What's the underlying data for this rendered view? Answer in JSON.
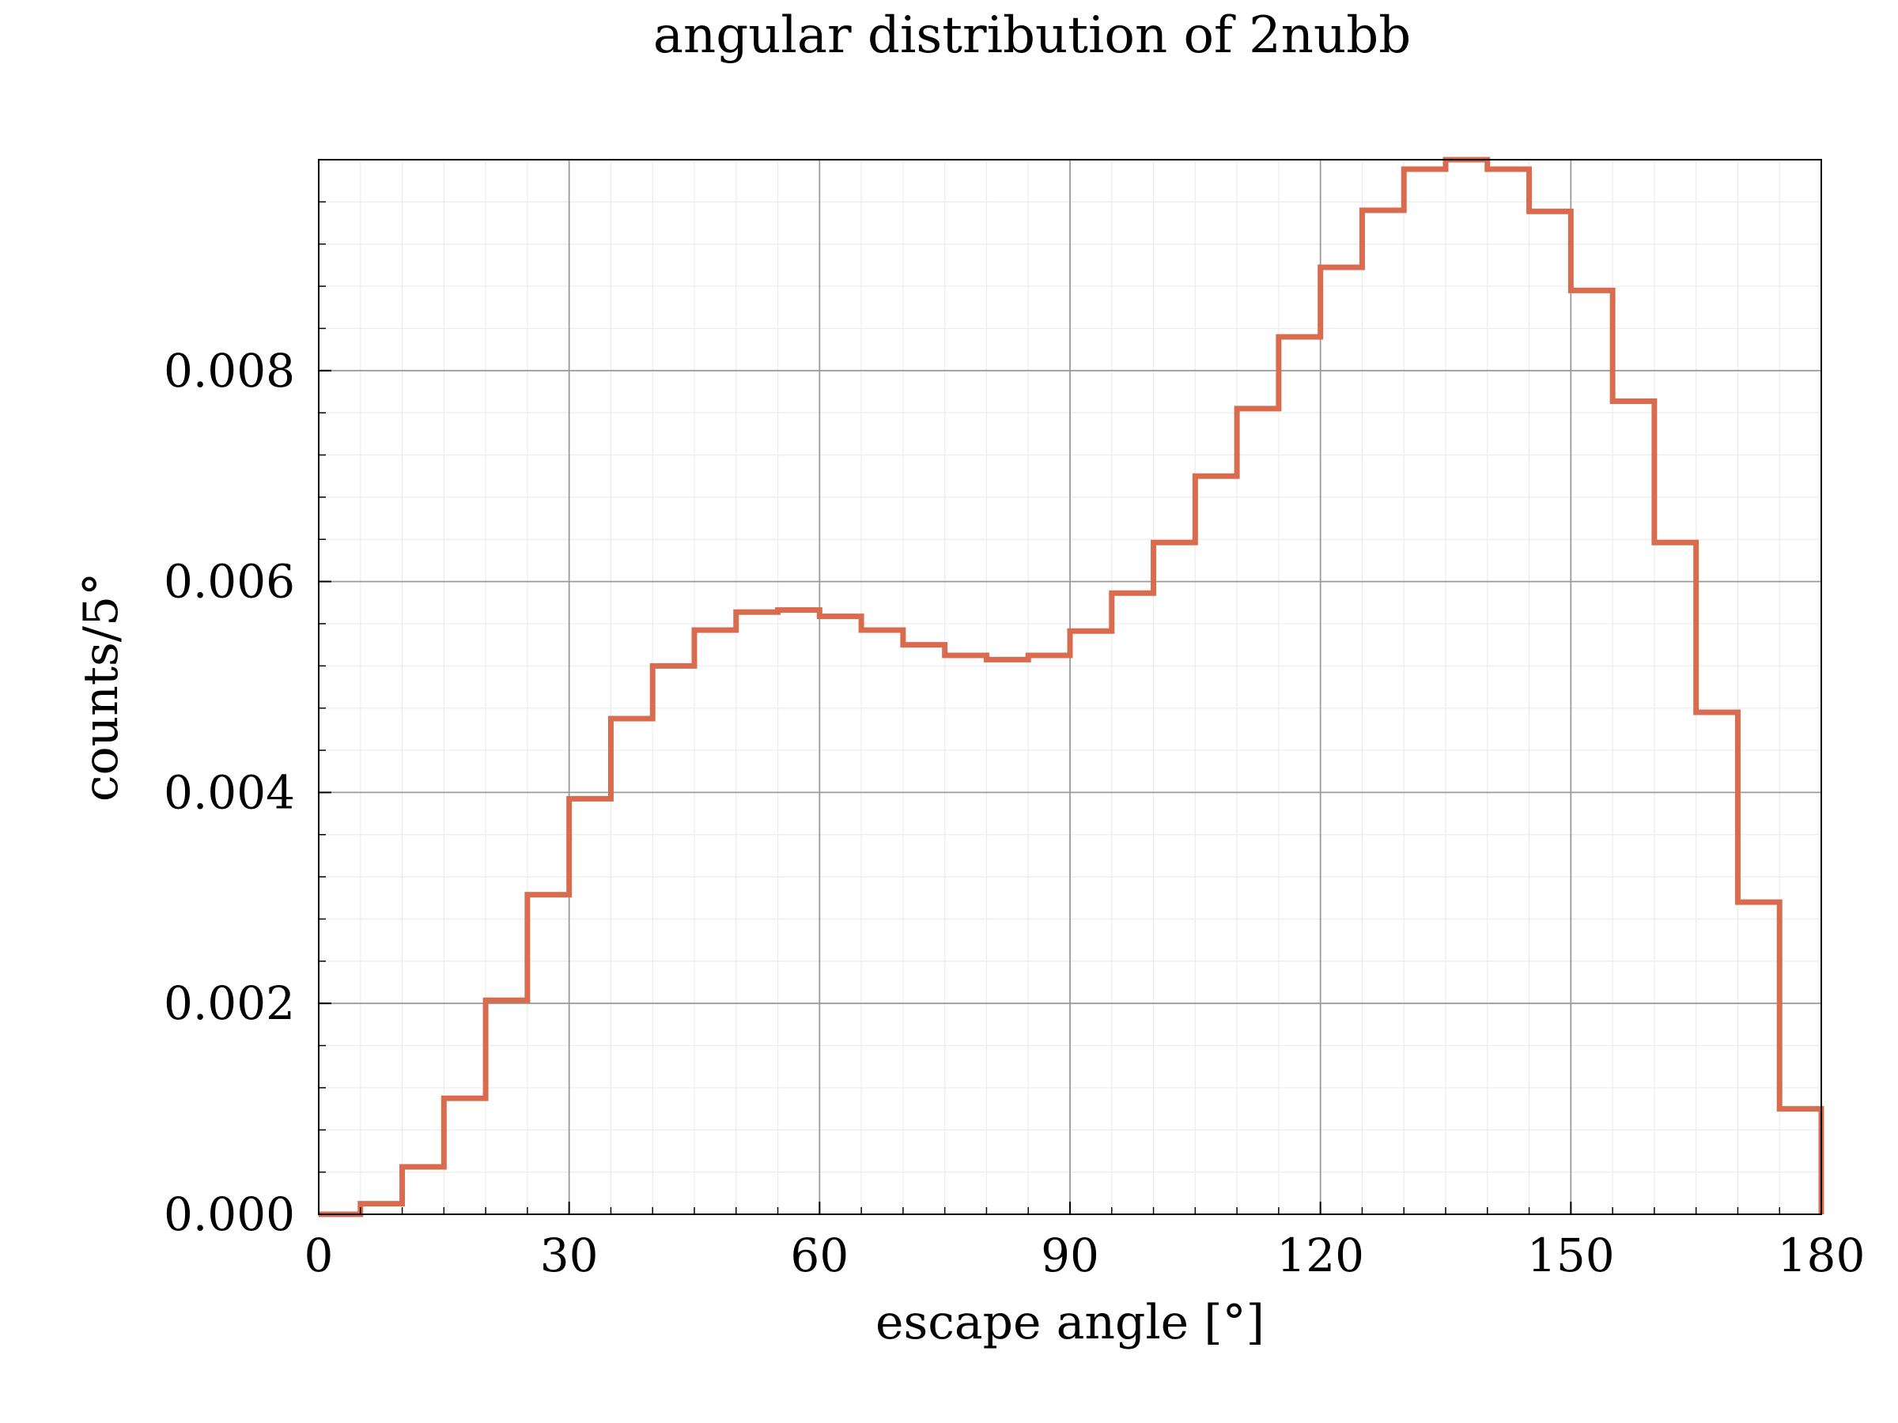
{
  "chart_data": {
    "type": "histogram-step",
    "title": "angular distribution of 2nubb",
    "xlabel": "escape angle [°]",
    "ylabel": "counts/5°",
    "xlim": [
      0,
      180
    ],
    "ylim": [
      0,
      0.01
    ],
    "x_ticks": [
      0,
      30,
      60,
      90,
      120,
      150,
      180
    ],
    "x_tick_labels": [
      "0",
      "30",
      "60",
      "90",
      "120",
      "150",
      "180"
    ],
    "y_ticks": [
      0,
      0.002,
      0.004,
      0.006,
      0.008
    ],
    "y_tick_labels": [
      "0.000",
      "0.002",
      "0.004",
      "0.006",
      "0.008"
    ],
    "grid": true,
    "bin_width": 5,
    "series": [
      {
        "color": "#d96b4f",
        "bin_edges_start": [
          0,
          5,
          10,
          15,
          20,
          25,
          30,
          35,
          40,
          45,
          50,
          55,
          60,
          65,
          70,
          75,
          80,
          85,
          90,
          95,
          100,
          105,
          110,
          115,
          120,
          125,
          130,
          135,
          140,
          145,
          150,
          155,
          160,
          165,
          170,
          175
        ],
        "values": [
          0.0,
          0.0001,
          0.00045,
          0.0011,
          0.00203,
          0.00303,
          0.00394,
          0.0047,
          0.0052,
          0.00554,
          0.00571,
          0.00573,
          0.00567,
          0.00554,
          0.0054,
          0.0053,
          0.00526,
          0.0053,
          0.00553,
          0.00589,
          0.00637,
          0.007,
          0.00764,
          0.00832,
          0.00898,
          0.00952,
          0.00991,
          0.01,
          0.00991,
          0.00951,
          0.00876,
          0.00771,
          0.00637,
          0.00476,
          0.00296,
          0.001
        ]
      }
    ]
  }
}
